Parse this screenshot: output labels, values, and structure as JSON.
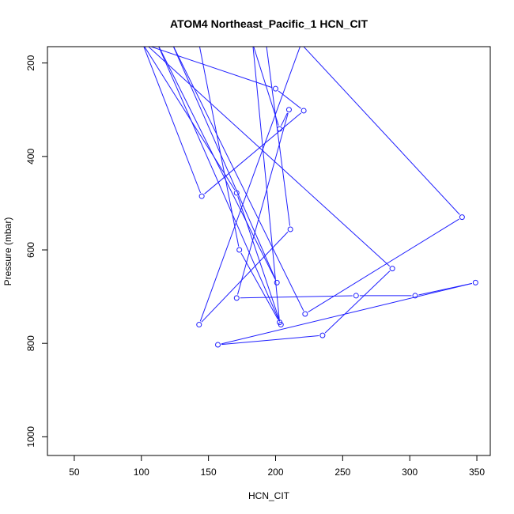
{
  "chart_data": {
    "type": "line",
    "title": "ATOM4 Northeast_Pacific_1 HCN_CIT",
    "xlabel": "HCN_CIT",
    "ylabel": "Pressure (mbar)",
    "xlim": [
      30,
      360
    ],
    "ylim": [
      1040,
      165
    ],
    "y_reversed": true,
    "x_ticks": [
      50,
      100,
      150,
      200,
      250,
      300,
      350
    ],
    "y_ticks": [
      200,
      400,
      600,
      800,
      1000
    ],
    "grid": false,
    "legend": "none",
    "color": "#1f1fff",
    "series": [
      {
        "x": [
          101,
          200,
          221,
          145,
          101,
          171,
          204,
          112,
          201,
          123,
          222,
          339,
          219,
          143,
          211,
          193,
          143,
          173,
          203,
          183,
          203,
          210,
          171,
          260,
          304,
          349,
          157,
          235,
          287,
          103
        ],
        "y": [
          159,
          255,
          302,
          485,
          159,
          478,
          760,
          159,
          670,
          159,
          737,
          530,
          159,
          760,
          556,
          159,
          159,
          600,
          755,
          159,
          341,
          300,
          703,
          698,
          698,
          670,
          803,
          783,
          640,
          159
        ]
      }
    ]
  }
}
